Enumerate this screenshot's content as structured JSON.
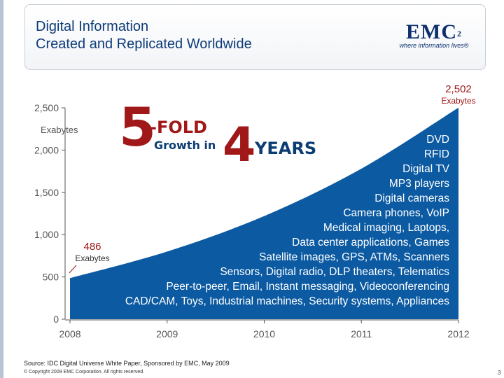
{
  "header": {
    "title_line1": "Digital Information",
    "title_line2": "Created and Replicated Worldwide",
    "logo_text": "EMC",
    "logo_superscript": "2",
    "logo_tagline": "where information lives®"
  },
  "colors": {
    "area_fill": "#0b5aa2",
    "title": "#0d3b7a",
    "highlight_red": "#a01818",
    "headline_blue": "#0c3e74",
    "axis": "#555555"
  },
  "chart_data": {
    "type": "area",
    "x": [
      2008,
      2009,
      2010,
      2011,
      2012
    ],
    "values": [
      486,
      800,
      1220,
      1780,
      2502
    ],
    "ylim": [
      0,
      2500
    ],
    "yticks": [
      "0",
      "500",
      "1,000",
      "1,500",
      "2,000",
      "2,500"
    ],
    "xticks": [
      "2008",
      "2009",
      "2010",
      "2011",
      "2012"
    ],
    "yunit": "Exabytes",
    "grid": false,
    "start_label": {
      "value": "486",
      "unit": "Exabytes"
    },
    "end_label": {
      "value": "2,502",
      "unit": "Exabytes"
    },
    "headline": {
      "big1": "5",
      "word1": "-FOLD",
      "word2": "Growth in",
      "big2": "4",
      "word3": "YEARS"
    },
    "annotations": [
      "DVD",
      "RFID",
      "Digital TV",
      "MP3 players",
      "Digital cameras",
      "Camera phones, VoIP",
      "Medical imaging, Laptops,",
      "Data center applications, Games",
      "Satellite images, GPS, ATMs, Scanners",
      "Sensors, Digital radio, DLP theaters, Telematics",
      "Peer-to-peer, Email, Instant messaging, Videoconferencing",
      "CAD/CAM, Toys, Industrial machines, Security systems, Appliances"
    ]
  },
  "footer": {
    "source": "Source: IDC Digital Universe White Paper, Sponsored by EMC, May 2009",
    "copyright": "© Copyright 2009 EMC Corporation. All rights reserved.",
    "page_number": "3"
  }
}
